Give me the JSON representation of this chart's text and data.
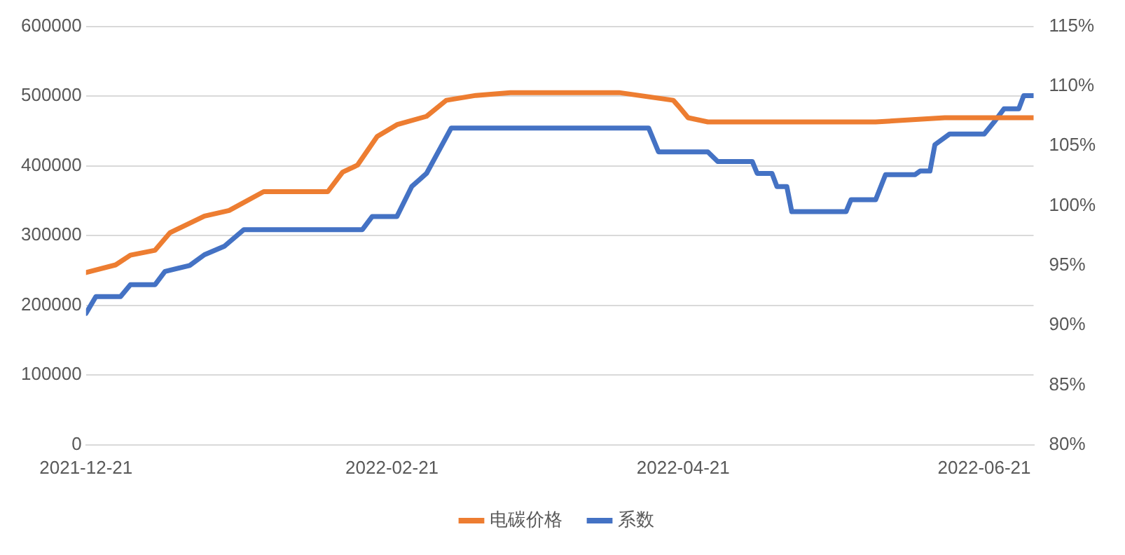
{
  "chart_data": {
    "type": "line",
    "legend": "bottom",
    "grid": "y",
    "marker": "none",
    "line_style": "solid",
    "xlim": [
      "2021-12-21",
      "2022-07-01"
    ],
    "xticks": [
      {
        "value": "2021-12-21",
        "label": "2021-12-21"
      },
      {
        "value": "2022-02-21",
        "label": "2022-02-21"
      },
      {
        "value": "2022-04-21",
        "label": "2022-04-21"
      },
      {
        "value": "2022-06-21",
        "label": "2022-06-21"
      }
    ],
    "ylim": [
      0,
      600000
    ],
    "yticks": [
      0,
      100000,
      200000,
      300000,
      400000,
      500000,
      600000
    ],
    "y2lim": [
      80,
      115
    ],
    "y2ticks": [
      {
        "value": 80,
        "label": "80%"
      },
      {
        "value": 85,
        "label": "85%"
      },
      {
        "value": 90,
        "label": "90%"
      },
      {
        "value": 95,
        "label": "95%"
      },
      {
        "value": 100,
        "label": "100%"
      },
      {
        "value": 105,
        "label": "105%"
      },
      {
        "value": 110,
        "label": "110%"
      },
      {
        "value": 115,
        "label": "115%"
      }
    ],
    "series": [
      {
        "name": "电碳价格",
        "color": "#ed7d31",
        "axis": "y",
        "x": [
          "2021-12-21",
          "2021-12-27",
          "2021-12-30",
          "2022-01-04",
          "2022-01-07",
          "2022-01-14",
          "2022-01-19",
          "2022-01-26",
          "2022-02-08",
          "2022-02-11",
          "2022-02-14",
          "2022-02-18",
          "2022-02-22",
          "2022-02-28",
          "2022-03-04",
          "2022-03-10",
          "2022-03-17",
          "2022-04-08",
          "2022-04-19",
          "2022-04-20",
          "2022-04-22",
          "2022-04-26",
          "2022-05-30",
          "2022-06-13",
          "2022-07-01"
        ],
        "values": [
          247000,
          258000,
          272000,
          279000,
          304000,
          328000,
          336000,
          363000,
          363000,
          391000,
          401000,
          442000,
          459000,
          471000,
          494000,
          501000,
          505000,
          505000,
          494000,
          486000,
          469000,
          463000,
          463000,
          469000,
          469000
        ]
      },
      {
        "name": "系数",
        "color": "#4472c4",
        "axis": "y2",
        "x": [
          "2021-12-21",
          "2021-12-23",
          "2021-12-28",
          "2021-12-30",
          "2022-01-04",
          "2022-01-06",
          "2022-01-11",
          "2022-01-14",
          "2022-01-18",
          "2022-01-22",
          "2022-02-15",
          "2022-02-17",
          "2022-02-22",
          "2022-02-25",
          "2022-02-28",
          "2022-03-05",
          "2022-04-14",
          "2022-04-16",
          "2022-04-26",
          "2022-04-28",
          "2022-05-05",
          "2022-05-06",
          "2022-05-09",
          "2022-05-10",
          "2022-05-12",
          "2022-05-13",
          "2022-05-24",
          "2022-05-25",
          "2022-05-30",
          "2022-06-01",
          "2022-06-07",
          "2022-06-08",
          "2022-06-10",
          "2022-06-11",
          "2022-06-14",
          "2022-06-21",
          "2022-06-23",
          "2022-06-25",
          "2022-06-28",
          "2022-06-29",
          "2022-07-01"
        ],
        "values": [
          91.0,
          92.4,
          92.4,
          93.4,
          93.4,
          94.5,
          95.0,
          95.9,
          96.6,
          98.0,
          98.0,
          99.1,
          99.1,
          101.6,
          102.7,
          106.5,
          106.5,
          104.5,
          104.5,
          103.7,
          103.7,
          102.7,
          102.7,
          101.6,
          101.6,
          99.5,
          99.5,
          100.5,
          100.5,
          102.6,
          102.6,
          102.9,
          102.9,
          105.1,
          106.0,
          106.0,
          107.0,
          108.1,
          108.1,
          109.2,
          109.2
        ]
      }
    ]
  }
}
